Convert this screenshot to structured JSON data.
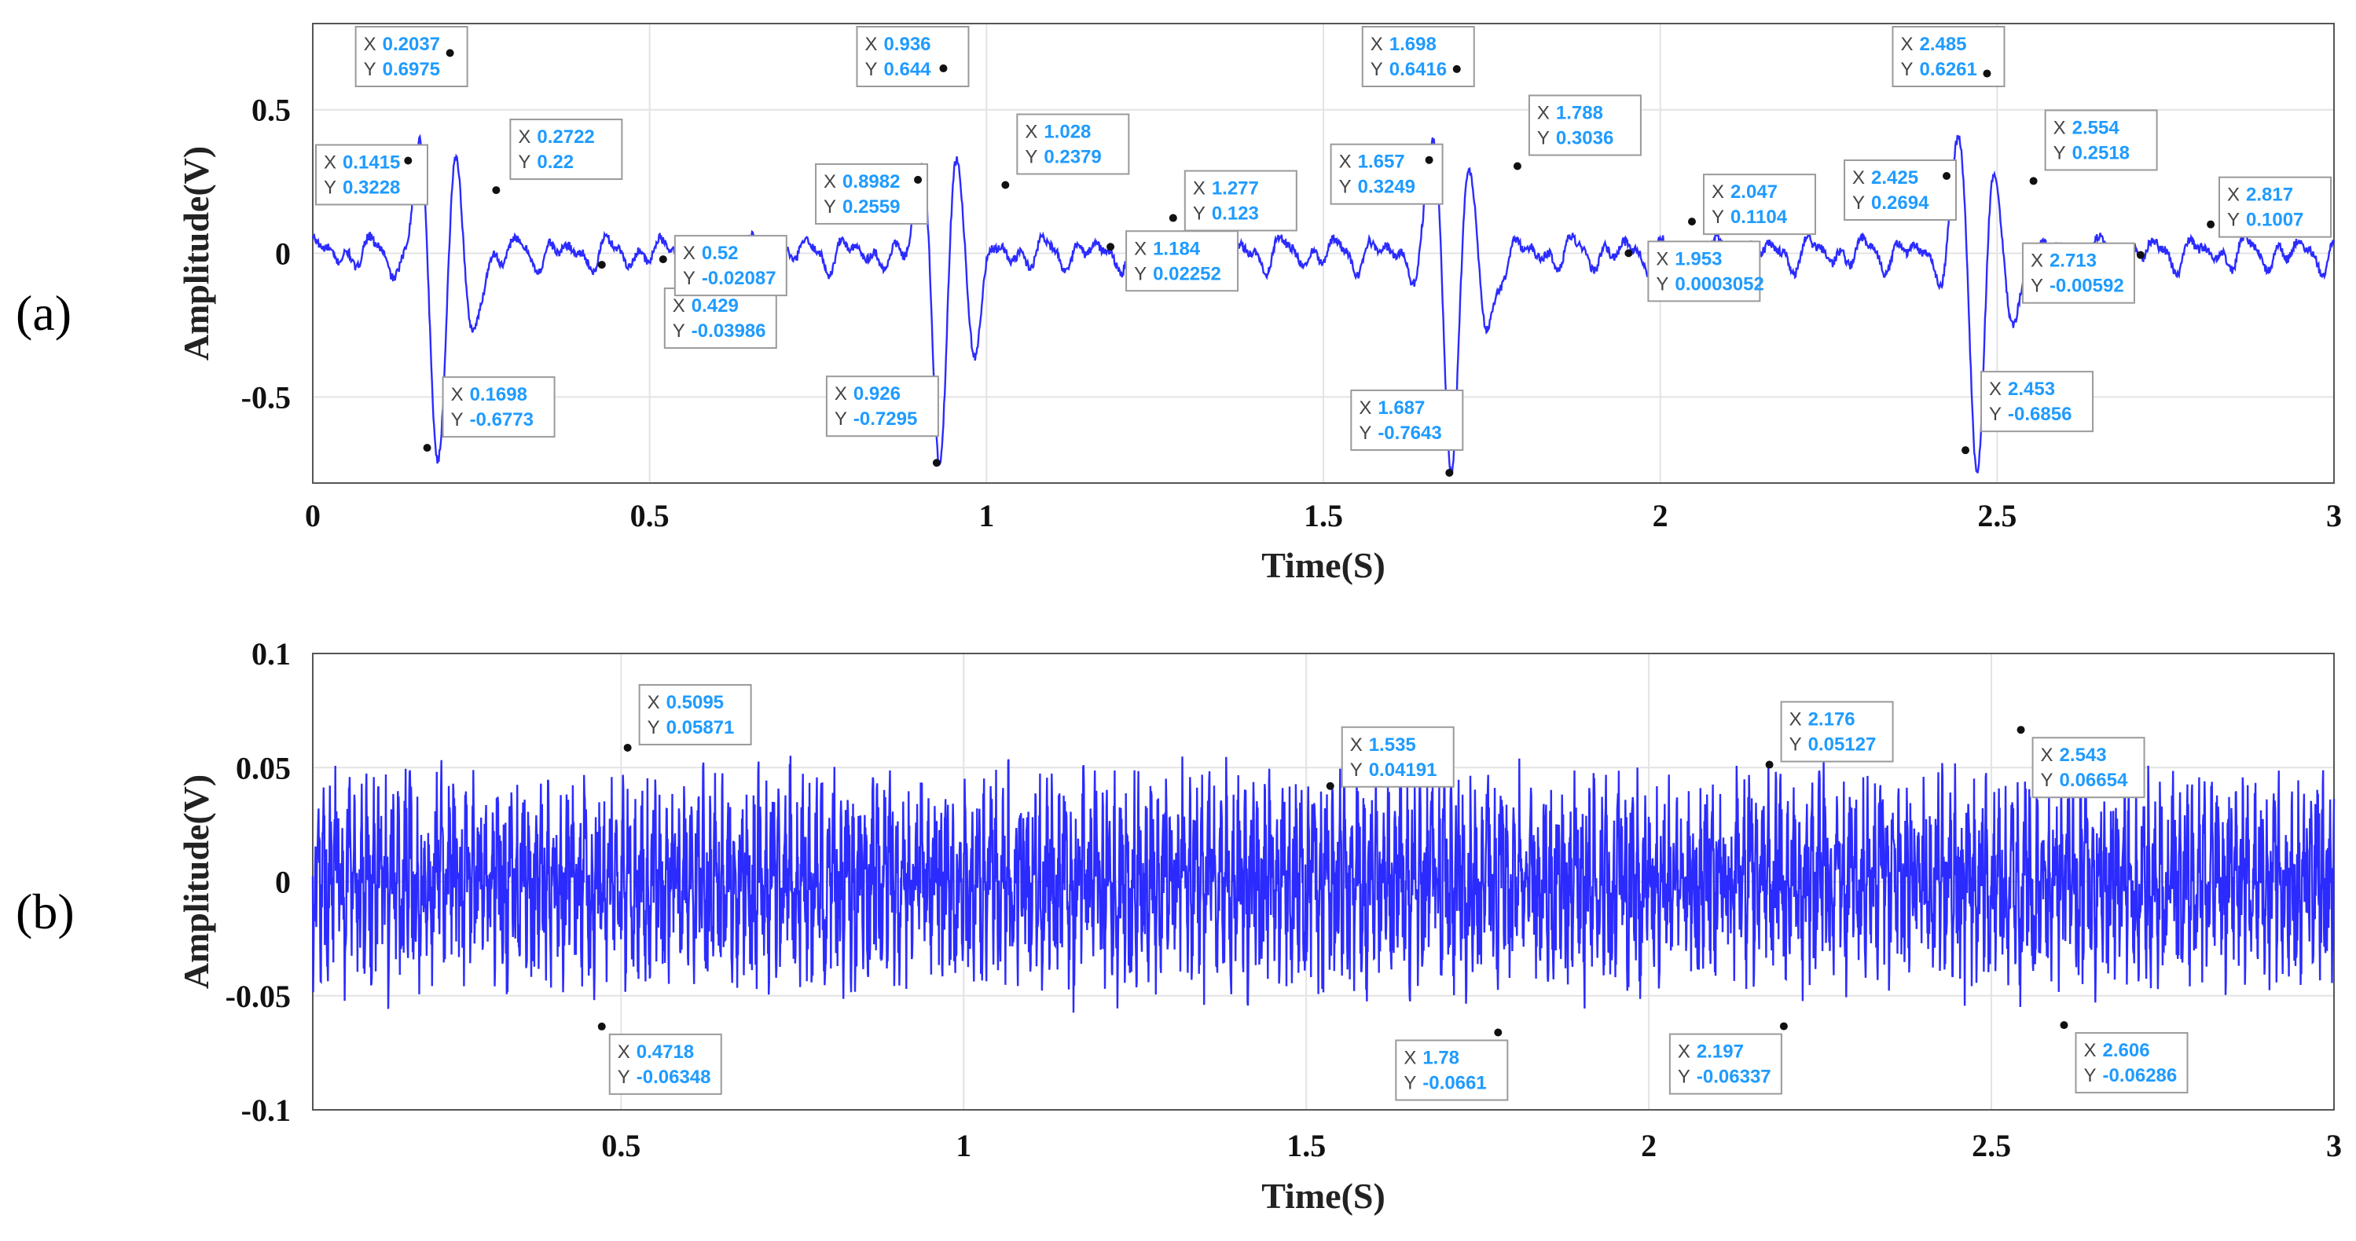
{
  "chart_data": [
    {
      "type": "line",
      "panel_label": "(a)",
      "xlabel": "Time(S)",
      "ylabel": "Amplitude(V)",
      "xlim": [
        0,
        3
      ],
      "ylim": [
        -0.8,
        0.8
      ],
      "xticks": [
        0,
        0.5,
        1,
        1.5,
        2,
        2.5,
        3
      ],
      "xtick_labels": [
        "0",
        "0.5",
        "1",
        "1.5",
        "2",
        "2.5",
        "3"
      ],
      "yticks": [
        0.5,
        0,
        -0.5
      ],
      "ytick_labels": [
        "0.5",
        "0",
        "-0.5"
      ],
      "grid": true,
      "line_color": "#2b2bff",
      "datatip_color": "#1f9bff",
      "annotations": [
        {
          "x": 0.1415,
          "y": 0.3228,
          "x_text": "0.1415",
          "y_text": "0.3228"
        },
        {
          "x": 0.2037,
          "y": 0.6975,
          "x_text": "0.2037",
          "y_text": "0.6975"
        },
        {
          "x": 0.1698,
          "y": -0.6773,
          "x_text": "0.1698",
          "y_text": "-0.6773"
        },
        {
          "x": 0.2722,
          "y": 0.22,
          "x_text": "0.2722",
          "y_text": "0.22"
        },
        {
          "x": 0.429,
          "y": -0.03986,
          "x_text": "0.429",
          "y_text": "-0.03986"
        },
        {
          "x": 0.52,
          "y": -0.02087,
          "x_text": "0.52",
          "y_text": "-0.02087"
        },
        {
          "x": 0.8982,
          "y": 0.2559,
          "x_text": "0.8982",
          "y_text": "0.2559"
        },
        {
          "x": 0.936,
          "y": 0.644,
          "x_text": "0.936",
          "y_text": "0.644"
        },
        {
          "x": 0.926,
          "y": -0.7295,
          "x_text": "0.926",
          "y_text": "-0.7295"
        },
        {
          "x": 1.028,
          "y": 0.2379,
          "x_text": "1.028",
          "y_text": "0.2379"
        },
        {
          "x": 1.184,
          "y": 0.02252,
          "x_text": "1.184",
          "y_text": "0.02252"
        },
        {
          "x": 1.277,
          "y": 0.123,
          "x_text": "1.277",
          "y_text": "0.123"
        },
        {
          "x": 1.657,
          "y": 0.3249,
          "x_text": "1.657",
          "y_text": "0.3249"
        },
        {
          "x": 1.698,
          "y": 0.6416,
          "x_text": "1.698",
          "y_text": "0.6416"
        },
        {
          "x": 1.687,
          "y": -0.7643,
          "x_text": "1.687",
          "y_text": "-0.7643"
        },
        {
          "x": 1.788,
          "y": 0.3036,
          "x_text": "1.788",
          "y_text": "0.3036"
        },
        {
          "x": 1.953,
          "y": 0.0003052,
          "x_text": "1.953",
          "y_text": "0.0003052"
        },
        {
          "x": 2.047,
          "y": 0.1104,
          "x_text": "2.047",
          "y_text": "0.1104"
        },
        {
          "x": 2.425,
          "y": 0.2694,
          "x_text": "2.425",
          "y_text": "0.2694"
        },
        {
          "x": 2.485,
          "y": 0.6261,
          "x_text": "2.485",
          "y_text": "0.6261"
        },
        {
          "x": 2.453,
          "y": -0.6856,
          "x_text": "2.453",
          "y_text": "-0.6856"
        },
        {
          "x": 2.554,
          "y": 0.2518,
          "x_text": "2.554",
          "y_text": "0.2518"
        },
        {
          "x": 2.713,
          "y": -0.00592,
          "x_text": "2.713",
          "y_text": "-0.00592"
        },
        {
          "x": 2.817,
          "y": 0.1007,
          "x_text": "2.817",
          "y_text": "0.1007"
        }
      ]
    },
    {
      "type": "line",
      "panel_label": "(b)",
      "xlabel": "Time(S)",
      "ylabel": "Amplitude(V)",
      "xlim": [
        0.05,
        3
      ],
      "ylim": [
        -0.1,
        0.1
      ],
      "xticks": [
        0.5,
        1,
        1.5,
        2,
        2.5,
        3
      ],
      "xtick_labels": [
        "0.5",
        "1",
        "1.5",
        "2",
        "2.5",
        "3"
      ],
      "yticks": [
        0.1,
        0.05,
        0,
        -0.05,
        -0.1
      ],
      "ytick_labels": [
        "0.1",
        "0.05",
        "0",
        "-0.05",
        "-0.1"
      ],
      "grid": true,
      "line_color": "#2b2bff",
      "datatip_color": "#1f9bff",
      "annotations": [
        {
          "x": 0.5095,
          "y": 0.05871,
          "x_text": "0.5095",
          "y_text": "0.05871"
        },
        {
          "x": 0.4718,
          "y": -0.06348,
          "x_text": "0.4718",
          "y_text": "-0.06348"
        },
        {
          "x": 1.535,
          "y": 0.04191,
          "x_text": "1.535",
          "y_text": "0.04191"
        },
        {
          "x": 1.78,
          "y": -0.0661,
          "x_text": "1.78",
          "y_text": "-0.0661"
        },
        {
          "x": 2.176,
          "y": 0.05127,
          "x_text": "2.176",
          "y_text": "0.05127"
        },
        {
          "x": 2.197,
          "y": -0.06337,
          "x_text": "2.197",
          "y_text": "-0.06337"
        },
        {
          "x": 2.543,
          "y": 0.06654,
          "x_text": "2.543",
          "y_text": "0.06654"
        },
        {
          "x": 2.606,
          "y": -0.06286,
          "x_text": "2.606",
          "y_text": "-0.06286"
        }
      ]
    }
  ]
}
